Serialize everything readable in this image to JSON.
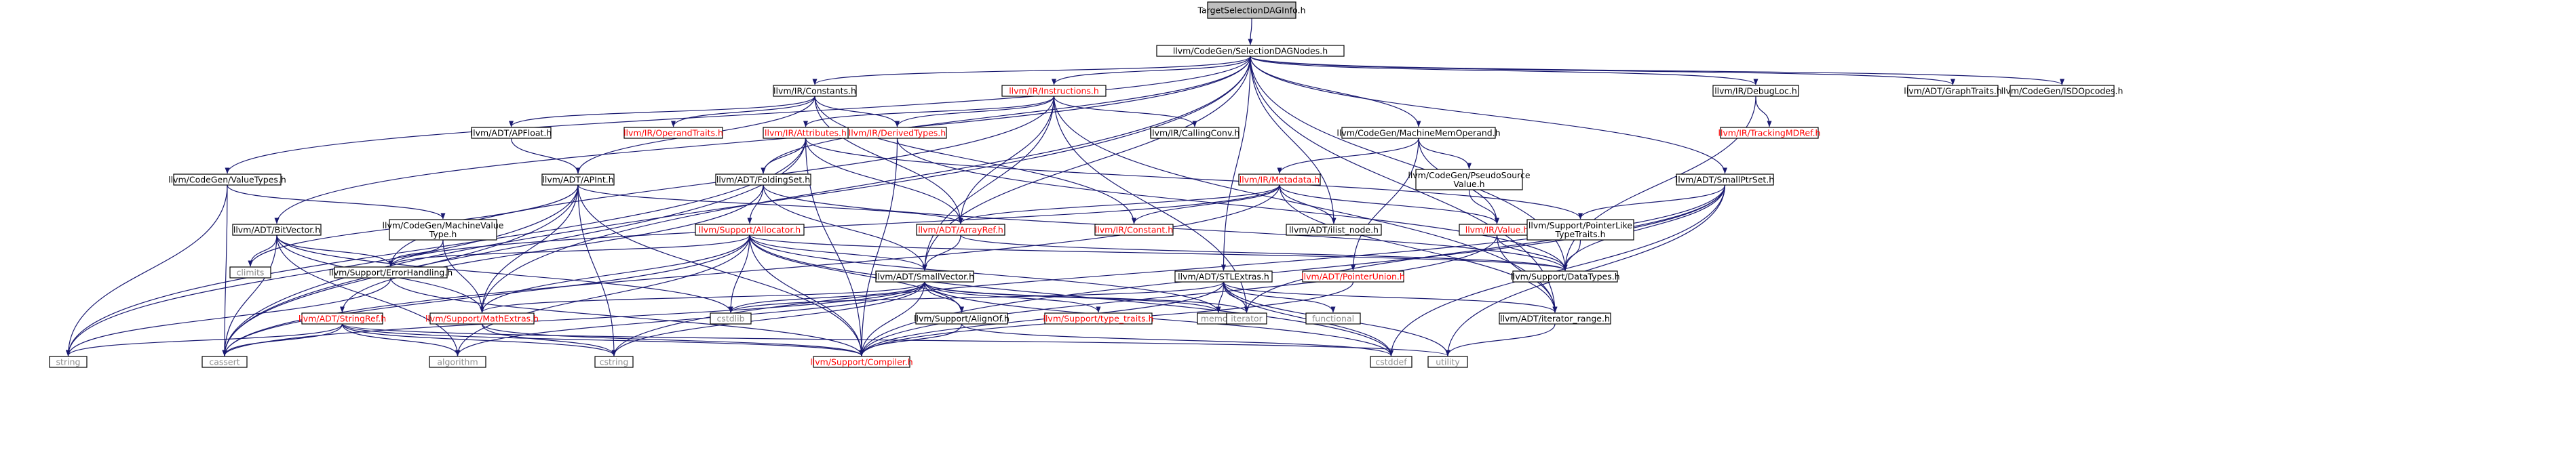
{
  "title": "TargetSelectionDAGInfo.h",
  "colors": {
    "edge": "#191970",
    "normal_text": "#000000",
    "missing_text": "#ff0000",
    "external_text": "#8c8c8c",
    "root_fill": "#bfbfbf",
    "node_fill": "#ffffff"
  },
  "nodes": [
    {
      "id": "root",
      "label": [
        "TargetSelectionDAGInfo.h"
      ],
      "kind": "root"
    },
    {
      "id": "sdn",
      "label": [
        "llvm/CodeGen/SelectionDAGNodes.h"
      ],
      "kind": "normal"
    },
    {
      "id": "constants",
      "label": [
        "llvm/IR/Constants.h"
      ],
      "kind": "normal"
    },
    {
      "id": "instructions",
      "label": [
        "llvm/IR/Instructions.h"
      ],
      "kind": "missing"
    },
    {
      "id": "debugloc",
      "label": [
        "llvm/IR/DebugLoc.h"
      ],
      "kind": "normal"
    },
    {
      "id": "graphtraits",
      "label": [
        "llvm/ADT/GraphTraits.h"
      ],
      "kind": "normal"
    },
    {
      "id": "isdopcodes",
      "label": [
        "llvm/CodeGen/ISDOpcodes.h"
      ],
      "kind": "normal"
    },
    {
      "id": "apfloat",
      "label": [
        "llvm/ADT/APFloat.h"
      ],
      "kind": "normal"
    },
    {
      "id": "operandtraits",
      "label": [
        "llvm/IR/OperandTraits.h"
      ],
      "kind": "missing"
    },
    {
      "id": "derivedtypes",
      "label": [
        "llvm/IR/DerivedTypes.h"
      ],
      "kind": "missing"
    },
    {
      "id": "callingconv",
      "label": [
        "llvm/IR/CallingConv.h"
      ],
      "kind": "normal"
    },
    {
      "id": "mmo",
      "label": [
        "llvm/CodeGen/MachineMemOperand.h"
      ],
      "kind": "normal"
    },
    {
      "id": "trackingmdref",
      "label": [
        "llvm/IR/TrackingMDRef.h"
      ],
      "kind": "missing"
    },
    {
      "id": "attributes",
      "label": [
        "llvm/IR/Attributes.h"
      ],
      "kind": "missing"
    },
    {
      "id": "valuetypes",
      "label": [
        "llvm/CodeGen/ValueTypes.h"
      ],
      "kind": "normal"
    },
    {
      "id": "apint",
      "label": [
        "llvm/ADT/APInt.h"
      ],
      "kind": "normal"
    },
    {
      "id": "foldingset",
      "label": [
        "llvm/ADT/FoldingSet.h"
      ],
      "kind": "normal"
    },
    {
      "id": "metadata",
      "label": [
        "llvm/IR/Metadata.h"
      ],
      "kind": "missing"
    },
    {
      "id": "psv",
      "label": [
        "llvm/CodeGen/PseudoSource",
        "Value.h"
      ],
      "kind": "normal"
    },
    {
      "id": "smallptrset",
      "label": [
        "llvm/ADT/SmallPtrSet.h"
      ],
      "kind": "normal"
    },
    {
      "id": "bitvector",
      "label": [
        "llvm/ADT/BitVector.h"
      ],
      "kind": "normal"
    },
    {
      "id": "mvt",
      "label": [
        "llvm/CodeGen/MachineValue",
        "Type.h"
      ],
      "kind": "normal"
    },
    {
      "id": "allocator",
      "label": [
        "llvm/Support/Allocator.h"
      ],
      "kind": "missing"
    },
    {
      "id": "arrayref",
      "label": [
        "llvm/ADT/ArrayRef.h"
      ],
      "kind": "missing"
    },
    {
      "id": "irconstant",
      "label": [
        "llvm/IR/Constant.h"
      ],
      "kind": "missing"
    },
    {
      "id": "ilist_node",
      "label": [
        "llvm/ADT/ilist_node.h"
      ],
      "kind": "normal"
    },
    {
      "id": "value",
      "label": [
        "llvm/IR/Value.h"
      ],
      "kind": "missing"
    },
    {
      "id": "pointerlike",
      "label": [
        "llvm/Support/PointerLike",
        "TypeTraits.h"
      ],
      "kind": "normal"
    },
    {
      "id": "climits",
      "label": [
        "climits"
      ],
      "kind": "external"
    },
    {
      "id": "errorhandling",
      "label": [
        "llvm/Support/ErrorHandling.h"
      ],
      "kind": "normal"
    },
    {
      "id": "smallvector",
      "label": [
        "llvm/ADT/SmallVector.h"
      ],
      "kind": "normal"
    },
    {
      "id": "stlextras",
      "label": [
        "llvm/ADT/STLExtras.h"
      ],
      "kind": "normal"
    },
    {
      "id": "pointerunion",
      "label": [
        "llvm/ADT/PointerUnion.h"
      ],
      "kind": "missing"
    },
    {
      "id": "datatypes",
      "label": [
        "llvm/Support/DataTypes.h"
      ],
      "kind": "normal"
    },
    {
      "id": "stringref",
      "label": [
        "llvm/ADT/StringRef.h"
      ],
      "kind": "missing"
    },
    {
      "id": "mathextras",
      "label": [
        "llvm/Support/MathExtras.h"
      ],
      "kind": "missing"
    },
    {
      "id": "cstdlib",
      "label": [
        "cstdlib"
      ],
      "kind": "external"
    },
    {
      "id": "alignof",
      "label": [
        "llvm/Support/AlignOf.h"
      ],
      "kind": "normal"
    },
    {
      "id": "type_traits",
      "label": [
        "llvm/Support/type_traits.h"
      ],
      "kind": "missing"
    },
    {
      "id": "memory",
      "label": [
        "memory"
      ],
      "kind": "external"
    },
    {
      "id": "iterator",
      "label": [
        "iterator"
      ],
      "kind": "external"
    },
    {
      "id": "functional",
      "label": [
        "functional"
      ],
      "kind": "external"
    },
    {
      "id": "iterator_range",
      "label": [
        "llvm/ADT/iterator_range.h"
      ],
      "kind": "normal"
    },
    {
      "id": "string",
      "label": [
        "string"
      ],
      "kind": "external"
    },
    {
      "id": "cassert",
      "label": [
        "cassert"
      ],
      "kind": "external"
    },
    {
      "id": "algorithm",
      "label": [
        "algorithm"
      ],
      "kind": "external"
    },
    {
      "id": "cstring",
      "label": [
        "cstring"
      ],
      "kind": "external"
    },
    {
      "id": "compiler",
      "label": [
        "llvm/Support/Compiler.h"
      ],
      "kind": "missing"
    },
    {
      "id": "cstddef",
      "label": [
        "cstddef"
      ],
      "kind": "external"
    },
    {
      "id": "utility",
      "label": [
        "utility"
      ],
      "kind": "external"
    }
  ],
  "edges": [
    [
      "root",
      "sdn"
    ],
    [
      "sdn",
      "constants"
    ],
    [
      "sdn",
      "instructions"
    ],
    [
      "sdn",
      "debugloc"
    ],
    [
      "sdn",
      "graphtraits"
    ],
    [
      "sdn",
      "isdopcodes"
    ],
    [
      "sdn",
      "mmo"
    ],
    [
      "sdn",
      "valuetypes"
    ],
    [
      "sdn",
      "smallptrset"
    ],
    [
      "sdn",
      "bitvector"
    ],
    [
      "sdn",
      "foldingset"
    ],
    [
      "sdn",
      "smallvector"
    ],
    [
      "sdn",
      "stlextras"
    ],
    [
      "sdn",
      "ilist_node"
    ],
    [
      "sdn",
      "mathextras"
    ],
    [
      "sdn",
      "datatypes"
    ],
    [
      "sdn",
      "iterator_range"
    ],
    [
      "sdn",
      "cassert"
    ],
    [
      "constants",
      "apfloat"
    ],
    [
      "constants",
      "operandtraits"
    ],
    [
      "constants",
      "derivedtypes"
    ],
    [
      "constants",
      "apint"
    ],
    [
      "constants",
      "arrayref"
    ],
    [
      "constants",
      "irconstant"
    ],
    [
      "instructions",
      "derivedtypes"
    ],
    [
      "instructions",
      "callingconv"
    ],
    [
      "instructions",
      "attributes"
    ],
    [
      "instructions",
      "arrayref"
    ],
    [
      "instructions",
      "smallvector"
    ],
    [
      "instructions",
      "iterator"
    ],
    [
      "instructions",
      "iterator_range"
    ],
    [
      "instructions",
      "errorhandling"
    ],
    [
      "debugloc",
      "trackingmdref"
    ],
    [
      "debugloc",
      "datatypes"
    ],
    [
      "apfloat",
      "apint"
    ],
    [
      "derivedtypes",
      "compiler"
    ],
    [
      "derivedtypes",
      "datatypes"
    ],
    [
      "mmo",
      "metadata"
    ],
    [
      "mmo",
      "psv"
    ],
    [
      "mmo",
      "pointerunion"
    ],
    [
      "mmo",
      "value"
    ],
    [
      "attributes",
      "foldingset"
    ],
    [
      "attributes",
      "arrayref"
    ],
    [
      "attributes",
      "pointerlike"
    ],
    [
      "attributes",
      "string"
    ],
    [
      "attributes",
      "cassert"
    ],
    [
      "attributes",
      "compiler"
    ],
    [
      "valuetypes",
      "mvt"
    ],
    [
      "valuetypes",
      "string"
    ],
    [
      "valuetypes",
      "cassert"
    ],
    [
      "apint",
      "arrayref"
    ],
    [
      "apint",
      "mathextras"
    ],
    [
      "apint",
      "climits"
    ],
    [
      "apint",
      "cstring"
    ],
    [
      "apint",
      "string"
    ],
    [
      "apint",
      "cassert"
    ],
    [
      "apint",
      "compiler"
    ],
    [
      "foldingset",
      "smallvector"
    ],
    [
      "foldingset",
      "allocator"
    ],
    [
      "foldingset",
      "datatypes"
    ],
    [
      "foldingset",
      "stringref"
    ],
    [
      "metadata",
      "arrayref"
    ],
    [
      "metadata",
      "irconstant"
    ],
    [
      "metadata",
      "ilist_node"
    ],
    [
      "metadata",
      "value"
    ],
    [
      "metadata",
      "errorhandling"
    ],
    [
      "metadata",
      "iterator_range"
    ],
    [
      "metadata",
      "cassert"
    ],
    [
      "psv",
      "value"
    ],
    [
      "smallptrset",
      "pointerlike"
    ],
    [
      "smallptrset",
      "datatypes"
    ],
    [
      "smallptrset",
      "iterator"
    ],
    [
      "smallptrset",
      "cstddef"
    ],
    [
      "smallptrset",
      "cstring"
    ],
    [
      "smallptrset",
      "utility"
    ],
    [
      "smallptrset",
      "compiler"
    ],
    [
      "bitvector",
      "errorhandling"
    ],
    [
      "bitvector",
      "mathextras"
    ],
    [
      "bitvector",
      "climits"
    ],
    [
      "bitvector",
      "cstdlib"
    ],
    [
      "bitvector",
      "algorithm"
    ],
    [
      "bitvector",
      "cassert"
    ],
    [
      "mvt",
      "errorhandling"
    ],
    [
      "mvt",
      "mathextras"
    ],
    [
      "allocator",
      "smallvector"
    ],
    [
      "allocator",
      "alignof"
    ],
    [
      "allocator",
      "datatypes"
    ],
    [
      "allocator",
      "errorhandling"
    ],
    [
      "allocator",
      "mathextras"
    ],
    [
      "allocator",
      "compiler"
    ],
    [
      "allocator",
      "memory"
    ],
    [
      "allocator",
      "cstdlib"
    ],
    [
      "allocator",
      "algorithm"
    ],
    [
      "allocator",
      "cstddef"
    ],
    [
      "allocator",
      "cassert"
    ],
    [
      "arrayref",
      "smallvector"
    ],
    [
      "arrayref",
      "datatypes"
    ],
    [
      "value",
      "datatypes"
    ],
    [
      "value",
      "iterator_range"
    ],
    [
      "value",
      "compiler"
    ],
    [
      "pointerlike",
      "datatypes"
    ],
    [
      "errorhandling",
      "compiler"
    ],
    [
      "errorhandling",
      "string"
    ],
    [
      "smallvector",
      "alignof"
    ],
    [
      "smallvector",
      "compiler"
    ],
    [
      "smallvector",
      "mathextras"
    ],
    [
      "smallvector",
      "type_traits"
    ],
    [
      "smallvector",
      "memory"
    ],
    [
      "smallvector",
      "iterator"
    ],
    [
      "smallvector",
      "algorithm"
    ],
    [
      "smallvector",
      "cassert"
    ],
    [
      "smallvector",
      "cstddef"
    ],
    [
      "smallvector",
      "cstdlib"
    ],
    [
      "smallvector",
      "cstring"
    ],
    [
      "stlextras",
      "compiler"
    ],
    [
      "stlextras",
      "iterator_range"
    ],
    [
      "stlextras",
      "memory"
    ],
    [
      "stlextras",
      "iterator"
    ],
    [
      "stlextras",
      "functional"
    ],
    [
      "stlextras",
      "cstddef"
    ],
    [
      "stlextras",
      "cstdlib"
    ],
    [
      "stlextras",
      "utility"
    ],
    [
      "pointerunion",
      "compiler"
    ],
    [
      "stringref",
      "compiler"
    ],
    [
      "stringref",
      "algorithm"
    ],
    [
      "stringref",
      "cassert"
    ],
    [
      "stringref",
      "cstring"
    ],
    [
      "stringref",
      "string"
    ],
    [
      "stringref",
      "utility"
    ],
    [
      "mathextras",
      "compiler"
    ],
    [
      "mathextras",
      "cstring"
    ],
    [
      "alignof",
      "compiler"
    ],
    [
      "alignof",
      "cstddef"
    ],
    [
      "iterator_range",
      "utility"
    ]
  ]
}
